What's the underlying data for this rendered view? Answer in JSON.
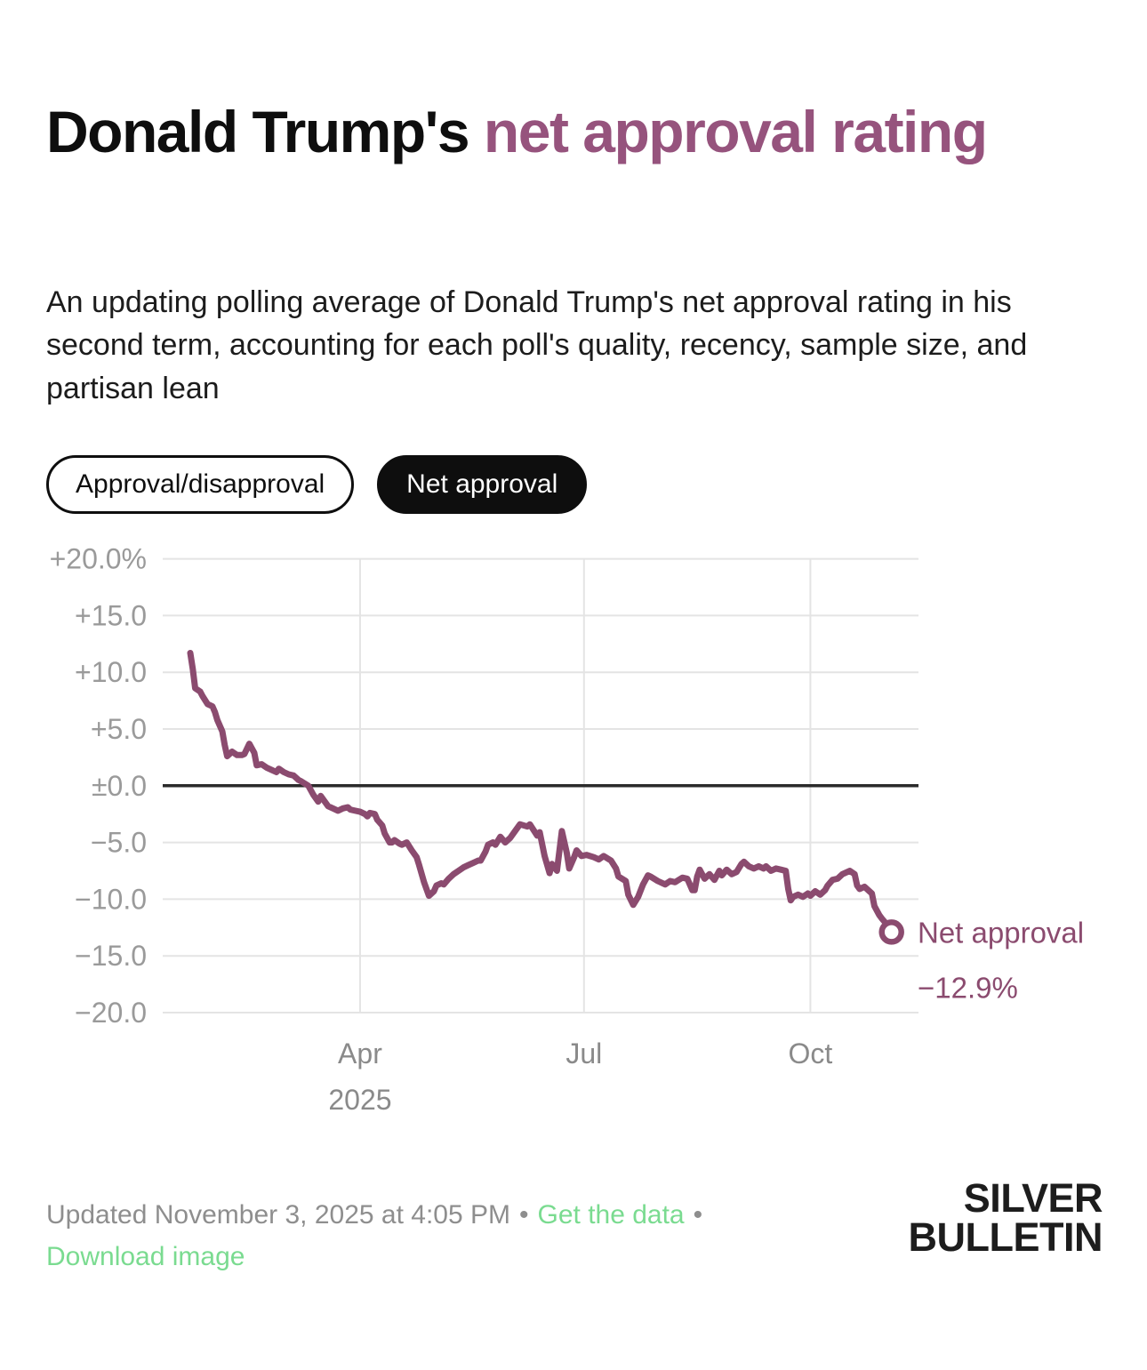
{
  "header": {
    "title_part_black": "Donald Trump's",
    "title_part_purple": "net approval rating",
    "subtitle": "An updating polling average of Donald Trump's net approval rating in his second term, accounting for each poll's quality, recency, sample size, and partisan lean"
  },
  "toggles": {
    "approval_disapproval_label": "Approval/disapproval",
    "net_approval_label": "Net approval",
    "active": "Net approval"
  },
  "chart_data": {
    "type": "line",
    "title": "Donald Trump's net approval rating",
    "x": {
      "epoch": "2025-01-22",
      "unit": "days",
      "domain_days": [
        -11,
        296
      ],
      "ticks": [
        {
          "day": 69,
          "label": "Apr"
        },
        {
          "day": 160,
          "label": "Jul"
        },
        {
          "day": 252,
          "label": "Oct"
        }
      ],
      "year_label": "2025",
      "year_tick_day": 69
    },
    "y": {
      "range": [
        -20,
        20
      ],
      "zero_line": true,
      "ticks": [
        {
          "v": 20,
          "label": "+20.0%"
        },
        {
          "v": 15,
          "label": "+15.0"
        },
        {
          "v": 10,
          "label": "+10.0"
        },
        {
          "v": 5,
          "label": "+5.0"
        },
        {
          "v": 0,
          "label": "±0.0"
        },
        {
          "v": -5,
          "label": "−5.0"
        },
        {
          "v": -10,
          "label": "−10.0"
        },
        {
          "v": -15,
          "label": "−15.0"
        },
        {
          "v": -20,
          "label": "−20.0"
        }
      ]
    },
    "grid": true,
    "legend_position": "end-of-line",
    "series": [
      {
        "name": "Net approval",
        "color": "#8B4B6F",
        "points": [
          [
            0,
            11.7
          ],
          [
            1,
            10.3
          ],
          [
            2,
            8.6
          ],
          [
            4,
            8.3
          ],
          [
            5,
            7.9
          ],
          [
            7,
            7.2
          ],
          [
            9,
            7.0
          ],
          [
            10,
            6.5
          ],
          [
            11,
            5.8
          ],
          [
            13,
            4.8
          ],
          [
            14,
            3.6
          ],
          [
            15,
            2.6
          ],
          [
            17,
            3.0
          ],
          [
            19,
            2.7
          ],
          [
            21,
            2.7
          ],
          [
            22,
            2.8
          ],
          [
            24,
            3.7
          ],
          [
            26,
            2.9
          ],
          [
            27,
            1.8
          ],
          [
            29,
            1.9
          ],
          [
            31,
            1.6
          ],
          [
            33,
            1.4
          ],
          [
            35,
            1.2
          ],
          [
            36,
            1.5
          ],
          [
            38,
            1.2
          ],
          [
            40,
            1.0
          ],
          [
            42,
            0.9
          ],
          [
            44,
            0.5
          ],
          [
            45,
            0.4
          ],
          [
            48,
            0.0
          ],
          [
            50,
            -0.8
          ],
          [
            52,
            -1.4
          ],
          [
            53,
            -0.9
          ],
          [
            55,
            -1.5
          ],
          [
            56,
            -1.8
          ],
          [
            58,
            -2.0
          ],
          [
            60,
            -2.2
          ],
          [
            62,
            -2.0
          ],
          [
            64,
            -1.9
          ],
          [
            65,
            -2.1
          ],
          [
            67,
            -2.2
          ],
          [
            69,
            -2.3
          ],
          [
            71,
            -2.5
          ],
          [
            72,
            -2.7
          ],
          [
            73,
            -2.4
          ],
          [
            75,
            -2.5
          ],
          [
            76,
            -3.0
          ],
          [
            78,
            -3.5
          ],
          [
            79,
            -4.2
          ],
          [
            81,
            -5.0
          ],
          [
            82,
            -5.0
          ],
          [
            83,
            -4.8
          ],
          [
            85,
            -5.1
          ],
          [
            86,
            -5.2
          ],
          [
            88,
            -5.0
          ],
          [
            90,
            -5.7
          ],
          [
            92,
            -6.3
          ],
          [
            93,
            -7.0
          ],
          [
            95,
            -8.5
          ],
          [
            97,
            -9.7
          ],
          [
            99,
            -9.3
          ],
          [
            100,
            -8.8
          ],
          [
            102,
            -8.6
          ],
          [
            103,
            -8.7
          ],
          [
            105,
            -8.2
          ],
          [
            107,
            -7.8
          ],
          [
            109,
            -7.5
          ],
          [
            111,
            -7.2
          ],
          [
            113,
            -7.0
          ],
          [
            115,
            -6.8
          ],
          [
            117,
            -6.6
          ],
          [
            118,
            -6.6
          ],
          [
            120,
            -5.8
          ],
          [
            121,
            -5.2
          ],
          [
            123,
            -5.0
          ],
          [
            124,
            -5.2
          ],
          [
            126,
            -4.5
          ],
          [
            128,
            -5.0
          ],
          [
            130,
            -4.6
          ],
          [
            132,
            -4.0
          ],
          [
            134,
            -3.4
          ],
          [
            137,
            -3.6
          ],
          [
            138,
            -3.4
          ],
          [
            141,
            -4.4
          ],
          [
            142,
            -4.1
          ],
          [
            144,
            -6.2
          ],
          [
            146,
            -7.7
          ],
          [
            147,
            -6.9
          ],
          [
            149,
            -7.5
          ],
          [
            151,
            -4.0
          ],
          [
            153,
            -5.9
          ],
          [
            154,
            -7.3
          ],
          [
            156,
            -6.3
          ],
          [
            157,
            -5.7
          ],
          [
            159,
            -6.2
          ],
          [
            161,
            -6.1
          ],
          [
            164,
            -6.3
          ],
          [
            166,
            -6.5
          ],
          [
            168,
            -6.2
          ],
          [
            171,
            -6.6
          ],
          [
            173,
            -7.3
          ],
          [
            174,
            -8.0
          ],
          [
            177,
            -8.4
          ],
          [
            178,
            -9.6
          ],
          [
            180,
            -10.5
          ],
          [
            182,
            -9.8
          ],
          [
            184,
            -8.7
          ],
          [
            186,
            -7.9
          ],
          [
            187,
            -8.0
          ],
          [
            190,
            -8.4
          ],
          [
            193,
            -8.7
          ],
          [
            195,
            -8.4
          ],
          [
            197,
            -8.5
          ],
          [
            200,
            -8.1
          ],
          [
            202,
            -8.2
          ],
          [
            204,
            -9.2
          ],
          [
            205,
            -9.2
          ],
          [
            206,
            -8.0
          ],
          [
            207,
            -7.4
          ],
          [
            209,
            -8.2
          ],
          [
            211,
            -7.8
          ],
          [
            213,
            -8.3
          ],
          [
            215,
            -7.5
          ],
          [
            216,
            -7.9
          ],
          [
            218,
            -7.4
          ],
          [
            220,
            -7.8
          ],
          [
            222,
            -7.6
          ],
          [
            224,
            -6.9
          ],
          [
            225,
            -6.7
          ],
          [
            227,
            -7.1
          ],
          [
            229,
            -7.3
          ],
          [
            231,
            -7.1
          ],
          [
            233,
            -7.3
          ],
          [
            234,
            -7.1
          ],
          [
            236,
            -7.5
          ],
          [
            238,
            -7.3
          ],
          [
            240,
            -7.4
          ],
          [
            242,
            -7.5
          ],
          [
            243,
            -9.1
          ],
          [
            244,
            -10.1
          ],
          [
            245,
            -9.8
          ],
          [
            247,
            -9.6
          ],
          [
            249,
            -9.8
          ],
          [
            251,
            -9.5
          ],
          [
            252,
            -9.7
          ],
          [
            254,
            -9.3
          ],
          [
            256,
            -9.6
          ],
          [
            258,
            -9.2
          ],
          [
            259,
            -8.8
          ],
          [
            261,
            -8.3
          ],
          [
            263,
            -8.2
          ],
          [
            265,
            -7.8
          ],
          [
            267,
            -7.6
          ],
          [
            268,
            -7.5
          ],
          [
            270,
            -7.8
          ],
          [
            271,
            -8.8
          ],
          [
            272,
            -9.1
          ],
          [
            274,
            -8.9
          ],
          [
            276,
            -9.3
          ],
          [
            277,
            -9.5
          ],
          [
            278,
            -10.6
          ],
          [
            280,
            -11.4
          ],
          [
            281,
            -11.7
          ],
          [
            283,
            -12.2
          ],
          [
            285,
            -12.9
          ]
        ]
      }
    ],
    "end_annotation": {
      "label": "Net approval",
      "value_label": "−12.9%",
      "value": -12.9
    }
  },
  "footer": {
    "updated": "Updated November 3, 2025 at 4:05 PM",
    "sep": "•",
    "get_data_label": "Get the data",
    "download_label": "Download image"
  },
  "logo": {
    "line1": "SILVER",
    "line2": "BULLETIN"
  },
  "colors": {
    "title_accent": "#96537D",
    "line": "#8B4B6F",
    "link_green": "#7adb90",
    "axis_gray": "#9a9a9a",
    "grid_gray": "#e4e4e4",
    "zero_line": "#2b2b2b",
    "text_black": "#0e0e0e"
  }
}
